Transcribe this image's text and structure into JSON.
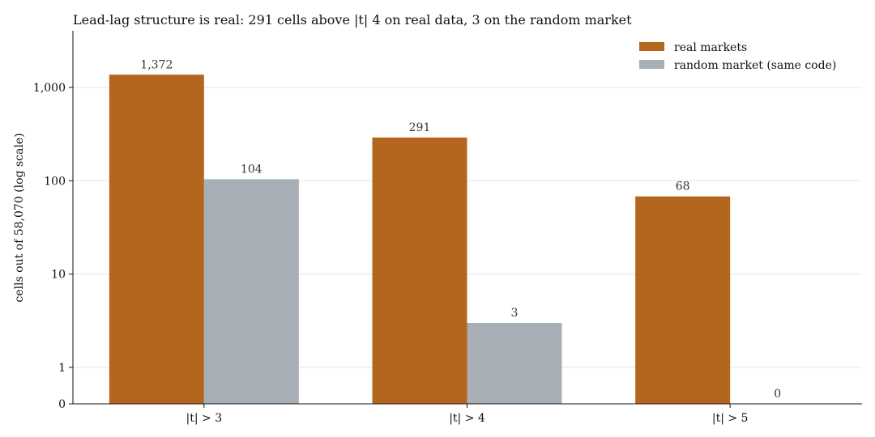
{
  "chart_data": {
    "type": "bar",
    "title": "Lead-lag structure is real: 291 cells above |t| 4 on real data, 3 on the random market",
    "xlabel": "",
    "ylabel": "cells out of 58,070 (log scale)",
    "categories": [
      "|t| > 3",
      "|t| > 4",
      "|t| > 5"
    ],
    "y_scale": "symlog",
    "y_ticks": [
      0,
      1,
      10,
      100,
      1000
    ],
    "y_tick_labels": [
      "0",
      "1",
      "10",
      "100",
      "1,000"
    ],
    "ylim": [
      0,
      4000
    ],
    "grid": "horizontal",
    "legend_position": "top-right",
    "series": [
      {
        "name": "real markets",
        "color": "#b5661e",
        "values": [
          1372,
          291,
          68
        ],
        "value_labels": [
          "1,372",
          "291",
          "68"
        ]
      },
      {
        "name": "random market (same code)",
        "color": "#a8aeb6",
        "values": [
          104,
          3,
          0
        ],
        "value_labels": [
          "104",
          "3",
          "0"
        ]
      }
    ]
  }
}
